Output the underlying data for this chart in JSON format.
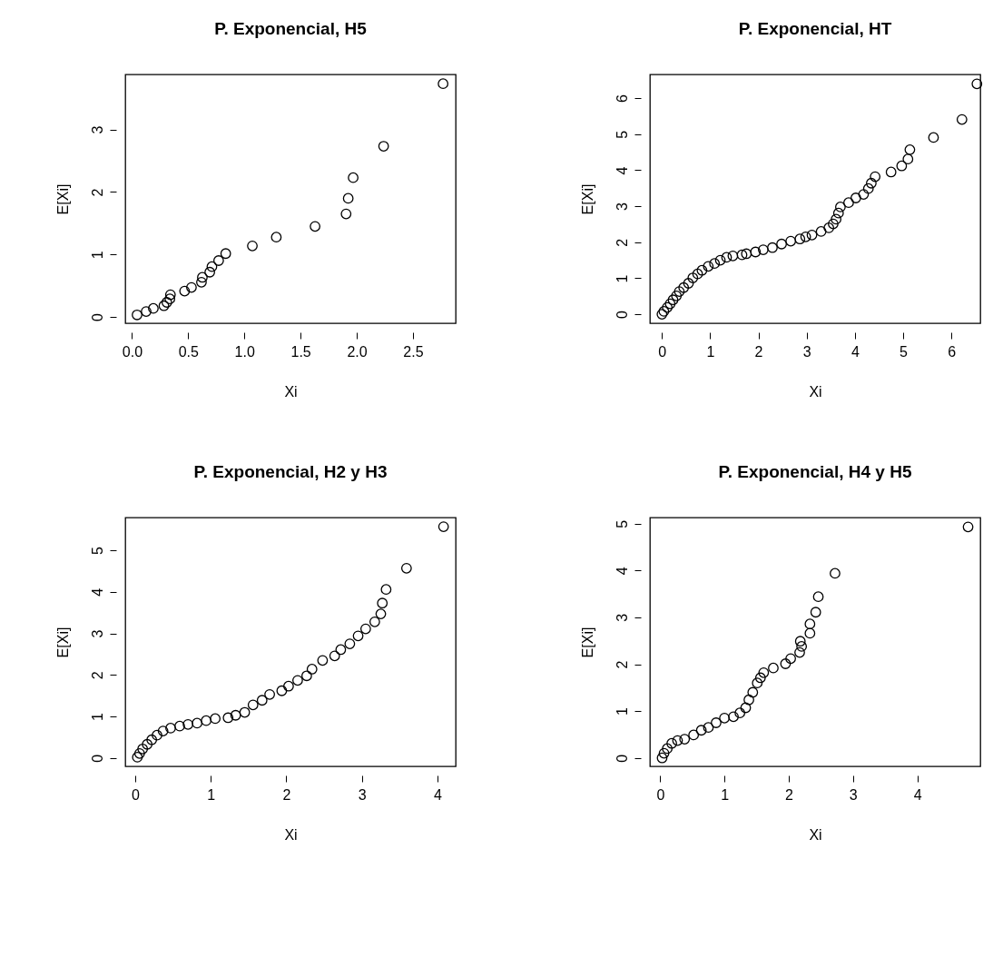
{
  "chart_data": [
    {
      "type": "scatter",
      "title": "P. Exponencial, H5",
      "xlabel": "Xi",
      "ylabel": "E[Xi]",
      "marker": "circle",
      "xlim": [
        -0.06,
        2.88
      ],
      "ylim": [
        -0.1,
        3.88
      ],
      "xticks": [
        {
          "value": 0,
          "label": "0.0"
        },
        0.5,
        {
          "value": 1,
          "label": "1.0"
        },
        1.5,
        {
          "value": 2,
          "label": "2.0"
        },
        2.5
      ],
      "yticks": [
        0,
        1,
        2,
        3
      ],
      "x": [
        0.045,
        0.126,
        0.19,
        0.284,
        0.31,
        0.337,
        0.342,
        0.468,
        0.529,
        0.618,
        0.626,
        0.692,
        0.711,
        0.771,
        0.834,
        1.071,
        1.284,
        1.629,
        1.905,
        1.924,
        1.968,
        2.239,
        2.768
      ],
      "values": [
        0.034,
        0.088,
        0.137,
        0.18,
        0.234,
        0.29,
        0.356,
        0.415,
        0.473,
        0.556,
        0.634,
        0.717,
        0.805,
        0.902,
        1.015,
        1.137,
        1.278,
        1.449,
        1.649,
        1.898,
        2.229,
        2.732,
        3.732
      ]
    },
    {
      "type": "scatter",
      "title": "P. Exponencial, HT",
      "xlabel": "Xi",
      "ylabel": "E[Xi]",
      "marker": "circle",
      "xlim": [
        -0.25,
        6.6
      ],
      "ylim": [
        -0.25,
        6.66
      ],
      "xticks": [
        0,
        1,
        2,
        3,
        4,
        5,
        6
      ],
      "yticks": [
        0,
        1,
        2,
        3,
        4,
        5,
        6
      ],
      "x": [
        0,
        0.04,
        0.11,
        0.17,
        0.23,
        0.3,
        0.36,
        0.45,
        0.55,
        0.64,
        0.74,
        0.83,
        0.96,
        1.09,
        1.21,
        1.34,
        1.47,
        1.66,
        1.75,
        1.94,
        2.1,
        2.29,
        2.48,
        2.67,
        2.86,
        2.98,
        3.11,
        3.3,
        3.46,
        3.55,
        3.61,
        3.66,
        3.7,
        3.87,
        4.02,
        4.18,
        4.28,
        4.34,
        4.42,
        4.75,
        4.97,
        5.1,
        5.14,
        5.63,
        6.22,
        6.53
      ],
      "values": [
        0,
        0.08,
        0.19,
        0.29,
        0.4,
        0.51,
        0.63,
        0.74,
        0.86,
        1.01,
        1.12,
        1.22,
        1.33,
        1.41,
        1.5,
        1.58,
        1.62,
        1.65,
        1.68,
        1.73,
        1.79,
        1.85,
        1.95,
        2.03,
        2.09,
        2.15,
        2.2,
        2.3,
        2.4,
        2.51,
        2.64,
        2.81,
        2.98,
        3.1,
        3.23,
        3.33,
        3.49,
        3.64,
        3.82,
        3.95,
        4.12,
        4.31,
        4.57,
        4.91,
        5.41,
        6.4
      ]
    },
    {
      "type": "scatter",
      "title": "P. Exponencial, H2 y H3",
      "xlabel": "Xi",
      "ylabel": "E[Xi]",
      "marker": "circle",
      "xlim": [
        -0.13,
        4.24
      ],
      "ylim": [
        -0.2,
        5.79
      ],
      "xticks": [
        0,
        1,
        2,
        3,
        4
      ],
      "yticks": [
        0,
        1,
        2,
        3,
        4,
        5
      ],
      "x": [
        0.03,
        0.06,
        0.1,
        0.16,
        0.22,
        0.29,
        0.37,
        0.47,
        0.59,
        0.7,
        0.82,
        0.94,
        1.06,
        1.23,
        1.33,
        1.45,
        1.56,
        1.68,
        1.78,
        1.94,
        2.03,
        2.15,
        2.27,
        2.34,
        2.48,
        2.64,
        2.72,
        2.84,
        2.95,
        3.05,
        3.17,
        3.25,
        3.27,
        3.32,
        3.59,
        4.08
      ],
      "values": [
        0.02,
        0.11,
        0.22,
        0.33,
        0.44,
        0.55,
        0.65,
        0.72,
        0.77,
        0.81,
        0.84,
        0.9,
        0.95,
        0.97,
        1.03,
        1.1,
        1.28,
        1.39,
        1.53,
        1.62,
        1.73,
        1.87,
        1.98,
        2.14,
        2.35,
        2.46,
        2.61,
        2.75,
        2.94,
        3.11,
        3.28,
        3.47,
        3.73,
        4.06,
        4.57,
        5.57
      ]
    },
    {
      "type": "scatter",
      "title": "P. Exponencial, H4 y H5",
      "xlabel": "Xi",
      "ylabel": "E[Xi]",
      "marker": "circle",
      "xlim": [
        -0.16,
        4.98
      ],
      "ylim": [
        -0.18,
        5.13
      ],
      "xticks": [
        0,
        1,
        2,
        3,
        4
      ],
      "yticks": [
        0,
        1,
        2,
        3,
        4,
        5
      ],
      "x": [
        0.03,
        0.06,
        0.11,
        0.18,
        0.27,
        0.38,
        0.52,
        0.64,
        0.75,
        0.87,
        1.0,
        1.14,
        1.24,
        1.33,
        1.38,
        1.44,
        1.51,
        1.56,
        1.61,
        1.76,
        1.95,
        2.03,
        2.17,
        2.2,
        2.18,
        2.33,
        2.33,
        2.42,
        2.46,
        2.72,
        4.79
      ],
      "values": [
        0,
        0.1,
        0.2,
        0.31,
        0.37,
        0.4,
        0.49,
        0.59,
        0.65,
        0.75,
        0.85,
        0.88,
        0.96,
        1.07,
        1.24,
        1.4,
        1.6,
        1.71,
        1.82,
        1.92,
        2.01,
        2.12,
        2.25,
        2.38,
        2.49,
        2.66,
        2.86,
        3.11,
        3.44,
        3.94,
        4.93
      ]
    }
  ]
}
